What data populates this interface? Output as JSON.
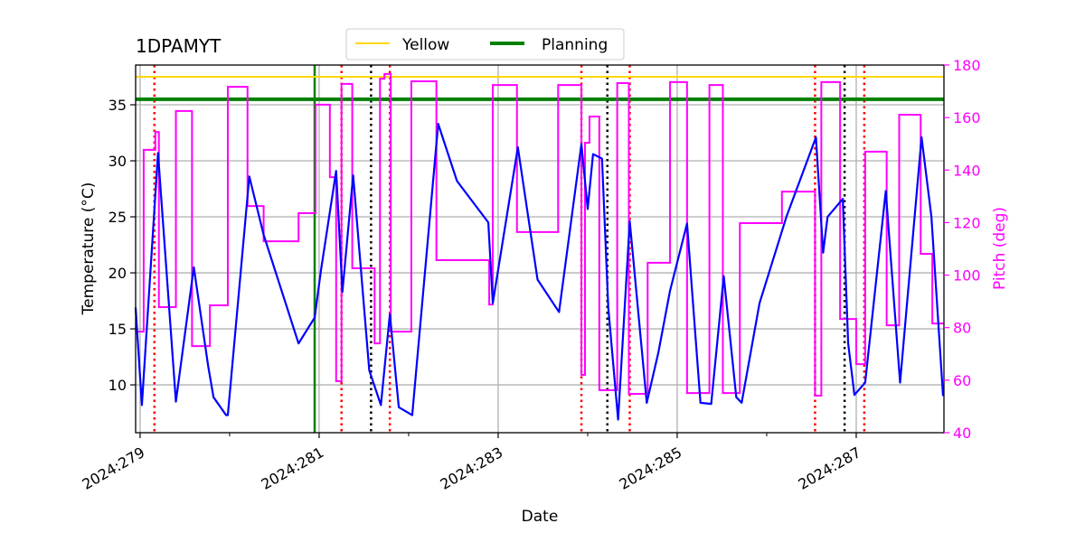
{
  "chart_data": {
    "type": "line",
    "title": "1DPAMYT",
    "xlabel": "Date",
    "ylabel": "Temperature ($^\\circ$C)",
    "ylabel_display": "Temperature (°C)",
    "y2label": "Pitch (deg)",
    "xlim": [
      278.95,
      287.98
    ],
    "ylim": [
      5.73,
      38.55
    ],
    "y2lim": [
      40,
      180
    ],
    "x_major_ticks": [
      279,
      281,
      283,
      285,
      287
    ],
    "x_tick_labels": [
      "2024:279",
      "2024:281",
      "2024:283",
      "2024:285",
      "2024:287"
    ],
    "x_minor_ticks": [
      280,
      282,
      284,
      286
    ],
    "y_ticks": [
      10,
      15,
      20,
      25,
      30,
      35
    ],
    "y_tick_labels": [
      "10",
      "15",
      "20",
      "25",
      "30",
      "35"
    ],
    "y2_ticks": [
      40,
      60,
      80,
      100,
      120,
      140,
      160,
      180
    ],
    "y2_tick_labels": [
      "40",
      "60",
      "80",
      "100",
      "120",
      "140",
      "160",
      "180"
    ],
    "grid": true,
    "legend": {
      "placement": "top-center",
      "entries": [
        {
          "label": "Yellow",
          "color": "#ffd700"
        },
        {
          "label": "Planning",
          "color": "#008000"
        }
      ]
    },
    "hlines": [
      {
        "name": "Yellow",
        "y": 37.5,
        "color": "#ffd700"
      },
      {
        "name": "Planning",
        "y": 35.5,
        "color": "#008000"
      }
    ],
    "vline_now": {
      "x": 280.95,
      "color": "#008000"
    },
    "red_dotted_vlines": [
      279.16,
      281.25,
      281.79,
      283.93,
      284.47,
      286.54,
      287.09
    ],
    "black_dotted_vlines": [
      281.58,
      284.22,
      286.87
    ],
    "colors": {
      "temperature": "#0000ff",
      "pitch": "#ff00ff",
      "grid": "#b0b0b0",
      "red": "#ff0000",
      "black": "#000000"
    },
    "series": [
      {
        "name": "Temperature",
        "axis": "left",
        "color": "#0000ff",
        "points": [
          [
            278.95,
            16.9
          ],
          [
            279.02,
            8.2
          ],
          [
            279.2,
            30.7
          ],
          [
            279.4,
            8.5
          ],
          [
            279.6,
            20.5
          ],
          [
            279.76,
            11.7
          ],
          [
            279.82,
            8.9
          ],
          [
            279.96,
            7.3
          ],
          [
            279.98,
            7.3
          ],
          [
            280.22,
            28.6
          ],
          [
            280.38,
            23.4
          ],
          [
            280.77,
            13.7
          ],
          [
            280.95,
            16.0
          ],
          [
            281.02,
            20.2
          ],
          [
            281.19,
            29.1
          ],
          [
            281.26,
            18.3
          ],
          [
            281.38,
            28.7
          ],
          [
            281.56,
            11.3
          ],
          [
            281.69,
            8.2
          ],
          [
            281.79,
            16.3
          ],
          [
            281.89,
            8.0
          ],
          [
            282.04,
            7.3
          ],
          [
            282.33,
            33.3
          ],
          [
            282.54,
            28.2
          ],
          [
            282.89,
            24.5
          ],
          [
            282.94,
            17.3
          ],
          [
            283.22,
            31.2
          ],
          [
            283.44,
            19.4
          ],
          [
            283.68,
            16.5
          ],
          [
            283.93,
            31.5
          ],
          [
            284.0,
            25.7
          ],
          [
            284.06,
            30.6
          ],
          [
            284.16,
            30.2
          ],
          [
            284.23,
            16.9
          ],
          [
            284.34,
            6.9
          ],
          [
            284.47,
            24.6
          ],
          [
            284.66,
            8.4
          ],
          [
            284.79,
            12.9
          ],
          [
            284.92,
            18.4
          ],
          [
            285.11,
            24.4
          ],
          [
            285.26,
            8.4
          ],
          [
            285.38,
            8.3
          ],
          [
            285.52,
            19.7
          ],
          [
            285.66,
            8.9
          ],
          [
            285.72,
            8.4
          ],
          [
            285.92,
            17.3
          ],
          [
            286.22,
            25.0
          ],
          [
            286.55,
            32.1
          ],
          [
            286.63,
            21.8
          ],
          [
            286.68,
            25.0
          ],
          [
            286.85,
            26.6
          ],
          [
            286.91,
            13.7
          ],
          [
            286.98,
            9.1
          ],
          [
            287.1,
            10.2
          ],
          [
            287.33,
            27.3
          ],
          [
            287.49,
            10.2
          ],
          [
            287.73,
            32.1
          ],
          [
            287.84,
            25.0
          ],
          [
            287.97,
            9.0
          ]
        ]
      },
      {
        "name": "Pitch",
        "axis": "right",
        "color": "#ff00ff",
        "step": "post",
        "points": [
          [
            278.95,
            78.5
          ],
          [
            279.04,
            147.7
          ],
          [
            279.17,
            154.5
          ],
          [
            279.21,
            87.8
          ],
          [
            279.4,
            162.5
          ],
          [
            279.58,
            73
          ],
          [
            279.78,
            88.5
          ],
          [
            279.98,
            171.7
          ],
          [
            280.2,
            126.3
          ],
          [
            280.38,
            112.9
          ],
          [
            280.77,
            123.6
          ],
          [
            280.96,
            164.9
          ],
          [
            281.12,
            137.3
          ],
          [
            281.19,
            59.6
          ],
          [
            281.25,
            172.8
          ],
          [
            281.37,
            102.6
          ],
          [
            281.62,
            74
          ],
          [
            281.68,
            174.8
          ],
          [
            281.73,
            176.6
          ],
          [
            281.8,
            78.5
          ],
          [
            282.03,
            173.8
          ],
          [
            282.31,
            105.7
          ],
          [
            282.9,
            88.8
          ],
          [
            282.94,
            172.4
          ],
          [
            283.21,
            116.4
          ],
          [
            283.67,
            172.4
          ],
          [
            283.93,
            62
          ],
          [
            283.97,
            150.4
          ],
          [
            284.02,
            160.4
          ],
          [
            284.13,
            56.2
          ],
          [
            284.33,
            173.1
          ],
          [
            284.46,
            54.8
          ],
          [
            284.67,
            104.7
          ],
          [
            284.92,
            173.5
          ],
          [
            285.11,
            55.1
          ],
          [
            285.36,
            172.4
          ],
          [
            285.51,
            55.1
          ],
          [
            285.7,
            119.8
          ],
          [
            286.17,
            131.8
          ],
          [
            286.54,
            54.1
          ],
          [
            286.61,
            173.5
          ],
          [
            286.82,
            83.3
          ],
          [
            287.0,
            66.1
          ],
          [
            287.1,
            147
          ],
          [
            287.34,
            80.9
          ],
          [
            287.48,
            161.1
          ],
          [
            287.72,
            108.1
          ],
          [
            287.85,
            81.6
          ],
          [
            287.98,
            81.6
          ]
        ]
      }
    ]
  }
}
